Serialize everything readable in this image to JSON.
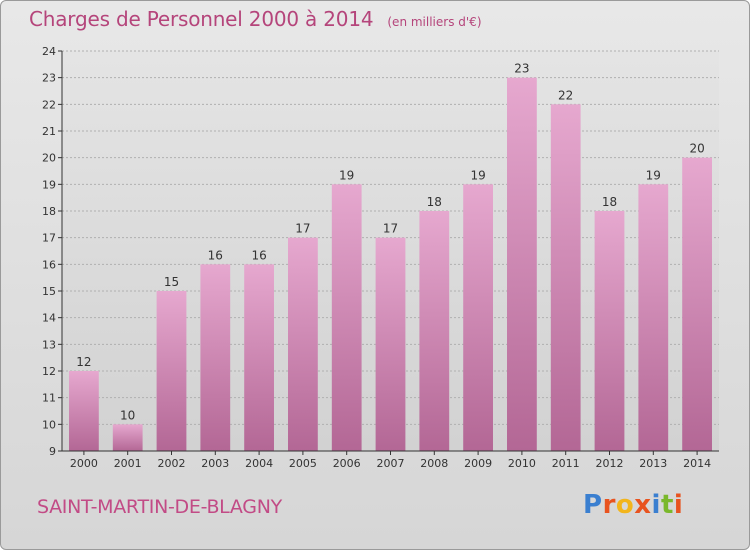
{
  "header": {
    "title": "Charges de Personnel 2000 à 2014",
    "subtitle": "(en milliers d'€)"
  },
  "footer": {
    "commune": "SAINT-MARTIN-DE-BLAGNY",
    "logo": "Proxiti",
    "logo_colors": [
      "#3a7fd0",
      "#e8531f",
      "#f2b51c",
      "#e8531f",
      "#3a7fd0",
      "#7ab82b",
      "#e8531f"
    ]
  },
  "colors": {
    "bar_top": "#e6a8cf",
    "bar_bottom": "#b36795",
    "title": "#b5457b",
    "axis": "#333333",
    "grid": "#b0b0b0"
  },
  "chart_data": {
    "type": "bar",
    "categories": [
      "2000",
      "2001",
      "2002",
      "2003",
      "2004",
      "2005",
      "2006",
      "2007",
      "2008",
      "2009",
      "2010",
      "2011",
      "2012",
      "2013",
      "2014"
    ],
    "values": [
      12,
      10,
      15,
      16,
      16,
      17,
      19,
      17,
      18,
      19,
      23,
      22,
      18,
      19,
      20
    ],
    "data_labels": [
      "12",
      "10",
      "15",
      "16",
      "16",
      "17",
      "19",
      "17",
      "18",
      "19",
      "23",
      "22",
      "18",
      "19",
      "20"
    ],
    "y_ticks": [
      9,
      10,
      11,
      12,
      13,
      14,
      15,
      16,
      17,
      18,
      19,
      20,
      21,
      22,
      23,
      24
    ],
    "ylim": [
      9,
      24
    ],
    "grid": true,
    "xlabel": "",
    "ylabel": ""
  }
}
